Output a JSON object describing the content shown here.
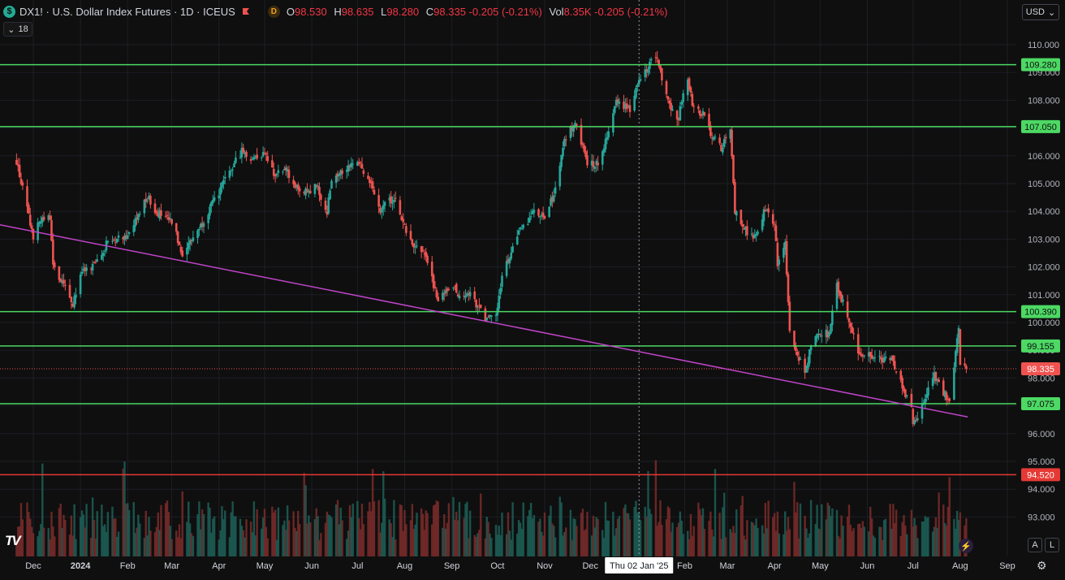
{
  "header": {
    "symbol_badge": "$",
    "title": "DX1! · U.S. Dollar Index Futures · 1D · ICEUS",
    "session_badge": "D",
    "ohlc": [
      {
        "label": "O",
        "value": "98.530"
      },
      {
        "label": "H",
        "value": "98.635"
      },
      {
        "label": "L",
        "value": "98.280"
      },
      {
        "label": "C",
        "value": "98.335 -0.205 (-0.21%)"
      },
      {
        "label": "Vol",
        "value": "8.35K -0.205 (-0.21%)"
      }
    ],
    "indicator_count": "18"
  },
  "currency_button": "USD",
  "logo": "TV",
  "auto_label": "A",
  "log_label": "L",
  "colors": {
    "up": "#26a69a",
    "down": "#ef5350",
    "level_green": "#4cd964",
    "level_red": "#e53935",
    "trendline": "#c044c8",
    "background": "#0f0f0f"
  },
  "chart_data": {
    "type": "candlestick",
    "symbol": "DX1!",
    "interval": "1D",
    "y_axis": {
      "range": [
        92.5,
        110.5
      ],
      "ticks": [
        "110.000",
        "109.000",
        "108.000",
        "107.000",
        "106.000",
        "105.000",
        "104.000",
        "103.000",
        "102.000",
        "101.000",
        "100.000",
        "99.000",
        "98.000",
        "97.000",
        "96.000",
        "95.000",
        "94.000",
        "93.000"
      ]
    },
    "x_axis": {
      "ticks": [
        "Dec",
        "2024",
        "Feb",
        "Mar",
        "Apr",
        "May",
        "Jun",
        "Jul",
        "Aug",
        "Sep",
        "Oct",
        "Nov",
        "Dec",
        "Feb",
        "Mar",
        "Apr",
        "May",
        "Jun",
        "Jul",
        "Aug",
        "Sep"
      ],
      "crosshair_label": "Thu 02 Jan '25"
    },
    "horizontal_levels": [
      {
        "value": 109.28,
        "label": "109.280",
        "color": "green"
      },
      {
        "value": 107.05,
        "label": "107.050",
        "color": "green"
      },
      {
        "value": 100.39,
        "label": "100.390",
        "color": "green"
      },
      {
        "value": 99.155,
        "label": "99.155",
        "color": "green"
      },
      {
        "value": 97.075,
        "label": "97.075",
        "color": "green"
      },
      {
        "value": 94.52,
        "label": "94.520",
        "color": "red"
      }
    ],
    "last_price": {
      "value": 98.335,
      "label": "98.335"
    },
    "trendline": {
      "from": {
        "date": "2023-11-20",
        "value": 103.4
      },
      "to": {
        "date": "2025-08-06",
        "value": 96.6
      }
    },
    "price_path": [
      {
        "date": "2023-11-20",
        "close": 105.8
      },
      {
        "date": "2023-11-28",
        "close": 103.8
      },
      {
        "date": "2023-12-01",
        "close": 103.1
      },
      {
        "date": "2023-12-05",
        "close": 103.6
      },
      {
        "date": "2023-12-12",
        "close": 103.8
      },
      {
        "date": "2023-12-14",
        "close": 102.0
      },
      {
        "date": "2023-12-27",
        "close": 100.7
      },
      {
        "date": "2024-01-02",
        "close": 101.8
      },
      {
        "date": "2024-01-08",
        "close": 101.9
      },
      {
        "date": "2024-01-19",
        "close": 102.9
      },
      {
        "date": "2024-02-02",
        "close": 103.2
      },
      {
        "date": "2024-02-14",
        "close": 104.5
      },
      {
        "date": "2024-02-20",
        "close": 104.0
      },
      {
        "date": "2024-03-01",
        "close": 103.6
      },
      {
        "date": "2024-03-08",
        "close": 102.5
      },
      {
        "date": "2024-03-20",
        "close": 103.5
      },
      {
        "date": "2024-03-29",
        "close": 104.4
      },
      {
        "date": "2024-04-16",
        "close": 106.2
      },
      {
        "date": "2024-04-22",
        "close": 105.9
      },
      {
        "date": "2024-05-01",
        "close": 106.1
      },
      {
        "date": "2024-05-08",
        "close": 105.3
      },
      {
        "date": "2024-05-15",
        "close": 105.5
      },
      {
        "date": "2024-05-24",
        "close": 104.6
      },
      {
        "date": "2024-06-04",
        "close": 104.9
      },
      {
        "date": "2024-06-11",
        "close": 104.0
      },
      {
        "date": "2024-06-14",
        "close": 105.2
      },
      {
        "date": "2024-06-26",
        "close": 105.7
      },
      {
        "date": "2024-07-02",
        "close": 105.8
      },
      {
        "date": "2024-07-10",
        "close": 104.9
      },
      {
        "date": "2024-07-16",
        "close": 104.1
      },
      {
        "date": "2024-07-25",
        "close": 104.5
      },
      {
        "date": "2024-08-02",
        "close": 103.3
      },
      {
        "date": "2024-08-05",
        "close": 102.9
      },
      {
        "date": "2024-08-14",
        "close": 102.5
      },
      {
        "date": "2024-08-23",
        "close": 100.8
      },
      {
        "date": "2024-09-02",
        "close": 101.3
      },
      {
        "date": "2024-09-06",
        "close": 101.0
      },
      {
        "date": "2024-09-13",
        "close": 101.0
      },
      {
        "date": "2024-09-24",
        "close": 100.1
      },
      {
        "date": "2024-09-30",
        "close": 100.2
      },
      {
        "date": "2024-10-04",
        "close": 101.7
      },
      {
        "date": "2024-10-15",
        "close": 103.2
      },
      {
        "date": "2024-10-25",
        "close": 104.0
      },
      {
        "date": "2024-11-01",
        "close": 103.7
      },
      {
        "date": "2024-11-08",
        "close": 104.8
      },
      {
        "date": "2024-11-14",
        "close": 106.6
      },
      {
        "date": "2024-11-22",
        "close": 107.2
      },
      {
        "date": "2024-11-29",
        "close": 105.6
      },
      {
        "date": "2024-12-06",
        "close": 105.8
      },
      {
        "date": "2024-12-12",
        "close": 106.7
      },
      {
        "date": "2024-12-18",
        "close": 108.0
      },
      {
        "date": "2024-12-27",
        "close": 107.7
      },
      {
        "date": "2025-01-02",
        "close": 108.8
      },
      {
        "date": "2025-01-10",
        "close": 109.4
      },
      {
        "date": "2025-01-13",
        "close": 109.6
      },
      {
        "date": "2025-01-20",
        "close": 108.2
      },
      {
        "date": "2025-01-27",
        "close": 107.2
      },
      {
        "date": "2025-02-03",
        "close": 108.8
      },
      {
        "date": "2025-02-06",
        "close": 107.8
      },
      {
        "date": "2025-02-13",
        "close": 107.5
      },
      {
        "date": "2025-02-18",
        "close": 106.8
      },
      {
        "date": "2025-02-25",
        "close": 106.3
      },
      {
        "date": "2025-03-03",
        "close": 106.9
      },
      {
        "date": "2025-03-06",
        "close": 104.0
      },
      {
        "date": "2025-03-11",
        "close": 103.5
      },
      {
        "date": "2025-03-18",
        "close": 103.0
      },
      {
        "date": "2025-03-26",
        "close": 104.1
      },
      {
        "date": "2025-04-01",
        "close": 103.6
      },
      {
        "date": "2025-04-03",
        "close": 102.0
      },
      {
        "date": "2025-04-08",
        "close": 102.8
      },
      {
        "date": "2025-04-11",
        "close": 99.6
      },
      {
        "date": "2025-04-21",
        "close": 98.1
      },
      {
        "date": "2025-04-25",
        "close": 99.2
      },
      {
        "date": "2025-05-01",
        "close": 99.6
      },
      {
        "date": "2025-05-07",
        "close": 99.6
      },
      {
        "date": "2025-05-12",
        "close": 101.3
      },
      {
        "date": "2025-05-19",
        "close": 100.3
      },
      {
        "date": "2025-05-26",
        "close": 98.9
      },
      {
        "date": "2025-06-02",
        "close": 98.8
      },
      {
        "date": "2025-06-11",
        "close": 98.6
      },
      {
        "date": "2025-06-17",
        "close": 98.7
      },
      {
        "date": "2025-06-25",
        "close": 97.5
      },
      {
        "date": "2025-06-30",
        "close": 96.9
      },
      {
        "date": "2025-07-01",
        "close": 96.3
      },
      {
        "date": "2025-07-08",
        "close": 97.1
      },
      {
        "date": "2025-07-15",
        "close": 98.1
      },
      {
        "date": "2025-07-22",
        "close": 97.4
      },
      {
        "date": "2025-07-25",
        "close": 97.2
      },
      {
        "date": "2025-07-31",
        "close": 99.8
      },
      {
        "date": "2025-08-01",
        "close": 98.6
      },
      {
        "date": "2025-08-05",
        "close": 98.335
      }
    ],
    "grid": true,
    "price_scale": "right"
  }
}
